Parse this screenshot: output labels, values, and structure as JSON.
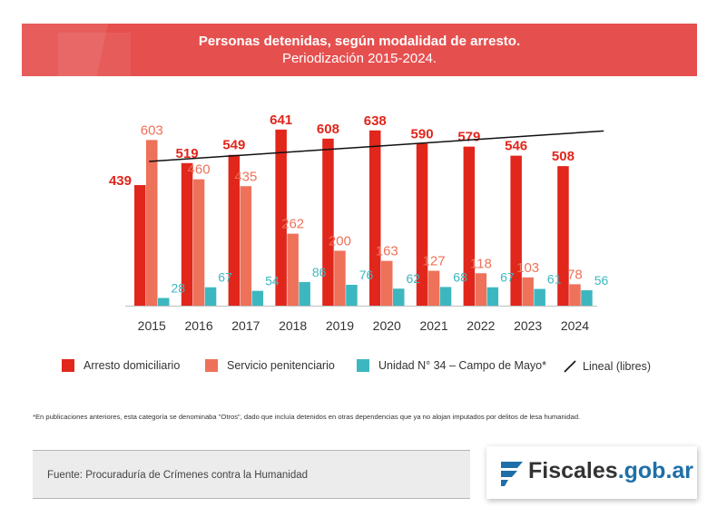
{
  "header": {
    "title": "Personas detenidas, según modalidad de arresto.",
    "subtitle": "Periodización 2015-2024."
  },
  "chart_data": {
    "type": "bar",
    "title": "Personas detenidas, según modalidad de arresto.",
    "subtitle": "Periodización 2015-2024.",
    "categories": [
      "2015",
      "2016",
      "2017",
      "2018",
      "2019",
      "2020",
      "2021",
      "2022",
      "2023",
      "2024"
    ],
    "ylim": [
      0,
      700
    ],
    "grid": false,
    "legend_position": "bottom",
    "series": [
      {
        "name": "Arresto domiciliario",
        "color": "#e1261c",
        "label_color": "#e1261c",
        "values": [
          439,
          519,
          549,
          641,
          608,
          638,
          590,
          579,
          546,
          508
        ]
      },
      {
        "name": "Servicio penitenciario",
        "color": "#ee7159",
        "label_color": "#ee7159",
        "values": [
          603,
          460,
          435,
          262,
          200,
          163,
          127,
          118,
          103,
          78
        ]
      },
      {
        "name": "Unidad N° 34 – Campo de Mayo*",
        "color": "#3db7bf",
        "label_color": "#3db7bf",
        "values": [
          28,
          67,
          54,
          86,
          76,
          62,
          68,
          67,
          61,
          56
        ]
      }
    ],
    "trendline": {
      "name": "Lineal (libres)",
      "color": "#111111",
      "start": 525,
      "end": 636
    }
  },
  "footnote": "*En publicaciones anteriores, esta categoría se denominaba \"Otros\", dado que incluía detenidos en otras dependencias que ya no alojan imputados por delitos de lesa humanidad.",
  "source": "Fuente: Procuraduría de Crímenes contra la Humanidad",
  "logo": {
    "name": "Fiscales",
    "domain": ".gob.ar",
    "icon": "flag-logo-icon",
    "brand_color": "#1e6fa8"
  }
}
